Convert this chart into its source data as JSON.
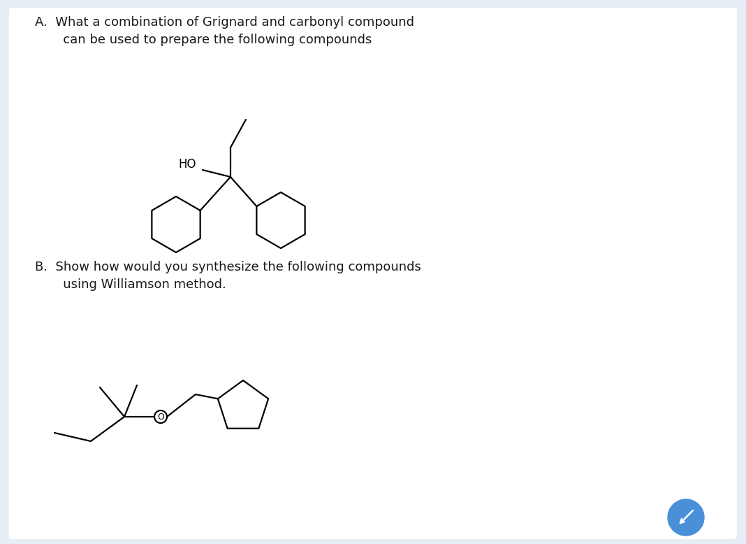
{
  "bg_color": "#e8eef5",
  "card_bg": "#ffffff",
  "text_color": "#1a1a1a",
  "title_A": "A.  What a combination of Grignard and carbonyl compound\n       can be used to prepare the following compounds",
  "title_B": "B.  Show how would you synthesize the following compounds\n       using Williamson method.",
  "line_color": "#000000",
  "line_width": 1.6,
  "font_size_title": 13.0,
  "button_color": "#4a90d9"
}
